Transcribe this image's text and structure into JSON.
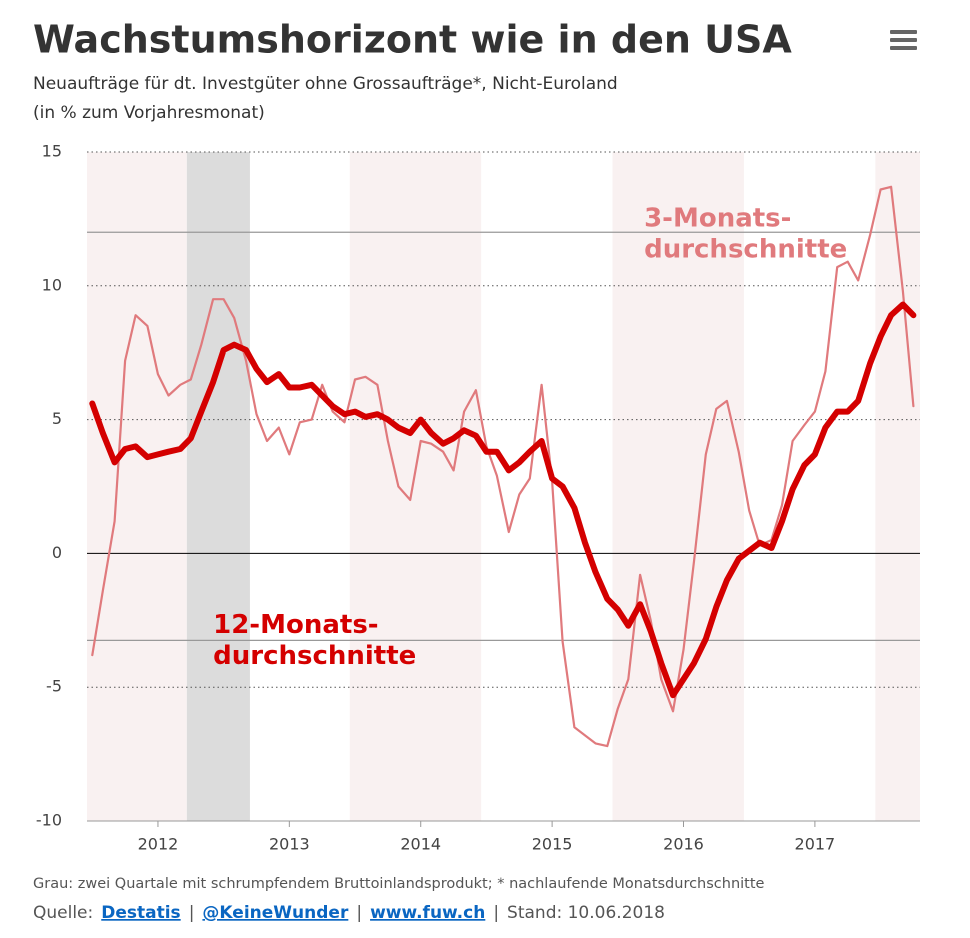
{
  "header": {
    "title": "Wachstumshorizont wie in den USA",
    "subtitle": [
      "Neuaufträge für dt. Investgüter ohne Grossaufträge*, Nicht-Euroland",
      "(in % zum Vorjahresmonat)"
    ]
  },
  "chart_data": {
    "type": "line",
    "x": [
      2011.5,
      2011.58,
      2011.67,
      2011.75,
      2011.83,
      2011.92,
      2012,
      2012.08,
      2012.17,
      2012.25,
      2012.33,
      2012.42,
      2012.5,
      2012.58,
      2012.67,
      2012.75,
      2012.83,
      2012.92,
      2013,
      2013.08,
      2013.17,
      2013.25,
      2013.33,
      2013.42,
      2013.5,
      2013.58,
      2013.67,
      2013.75,
      2013.83,
      2013.92,
      2014,
      2014.08,
      2014.17,
      2014.25,
      2014.33,
      2014.42,
      2014.5,
      2014.58,
      2014.67,
      2014.75,
      2014.83,
      2014.92,
      2015,
      2015.08,
      2015.17,
      2015.25,
      2015.33,
      2015.42,
      2015.5,
      2015.58,
      2015.67,
      2015.75,
      2015.83,
      2015.92,
      2016,
      2016.08,
      2016.17,
      2016.25,
      2016.33,
      2016.42,
      2016.5,
      2016.58,
      2016.67,
      2016.75,
      2016.83,
      2016.92,
      2017,
      2017.08,
      2017.17,
      2017.25,
      2017.33,
      2017.42,
      2017.5,
      2017.58,
      2017.67,
      2017.75
    ],
    "series": [
      {
        "color": "#e07a7d",
        "width": 2.2,
        "values": [
          -3.8,
          -1.4,
          1.2,
          7.2,
          8.9,
          8.5,
          6.7,
          5.9,
          6.3,
          6.5,
          7.8,
          9.5,
          9.5,
          8.8,
          7.2,
          5.2,
          4.2,
          4.7,
          3.7,
          4.9,
          5.0,
          6.3,
          5.3,
          4.9,
          6.5,
          6.6,
          6.3,
          4.2,
          2.5,
          2.0,
          4.2,
          4.1,
          3.8,
          3.1,
          5.3,
          6.1,
          4.0,
          2.9,
          0.8,
          2.2,
          2.8,
          6.3,
          2.7,
          -3.3,
          -6.5,
          -6.8,
          -7.1,
          -7.2,
          -5.8,
          -4.7,
          -0.8,
          -2.5,
          -4.7,
          -5.9,
          -3.6,
          -0.3,
          3.7,
          5.4,
          5.7,
          3.8,
          1.6,
          0.3,
          0.5,
          1.8,
          4.2,
          4.8,
          5.3,
          6.8,
          10.7,
          10.9,
          10.2,
          11.9,
          13.6,
          13.7,
          9.8,
          5.5
        ]
      },
      {
        "color": "#d40000",
        "width": 6,
        "values": [
          5.6,
          4.5,
          3.4,
          3.9,
          4.0,
          3.6,
          3.7,
          3.8,
          3.9,
          4.3,
          5.3,
          6.4,
          7.6,
          7.8,
          7.6,
          6.9,
          6.4,
          6.7,
          6.2,
          6.2,
          6.3,
          5.9,
          5.5,
          5.2,
          5.3,
          5.1,
          5.2,
          5.0,
          4.7,
          4.5,
          5.0,
          4.5,
          4.1,
          4.3,
          4.6,
          4.4,
          3.8,
          3.8,
          3.1,
          3.4,
          3.8,
          4.2,
          2.8,
          2.5,
          1.7,
          0.4,
          -0.7,
          -1.7,
          -2.1,
          -2.7,
          -1.9,
          -2.9,
          -4.1,
          -5.3,
          -4.7,
          -4.1,
          -3.2,
          -2.0,
          -1.0,
          -0.2,
          0.1,
          0.4,
          0.2,
          1.2,
          2.4,
          3.3,
          3.7,
          4.7,
          5.3,
          5.3,
          5.7,
          7.1,
          8.1,
          8.9,
          9.3,
          8.9
        ]
      }
    ],
    "xlim": [
      2011.46,
      2017.8
    ],
    "xticks": [
      2012,
      2013,
      2014,
      2015,
      2016,
      2017
    ],
    "ylim": [
      -10,
      15
    ],
    "yticks": [
      -10,
      -5,
      0,
      5,
      10,
      15
    ],
    "grid": true,
    "reference_lines": [
      12,
      -3.25
    ],
    "stripes": [
      [
        2011.46,
        2012.22
      ],
      [
        2013.46,
        2014.46
      ],
      [
        2015.46,
        2016.46
      ],
      [
        2017.46,
        2017.8
      ]
    ],
    "stripe_color": "#f9f1f1",
    "shaded": [
      [
        2012.22,
        2012.7
      ]
    ],
    "shaded_color": "#dcdcdc",
    "annotations": [
      {
        "lines": [
          "3-Monats-",
          "durchschnitte"
        ],
        "x": 2015.7,
        "y": 12.5,
        "color": "#e07a7d"
      },
      {
        "lines": [
          "12-Monats-",
          "durchschnitte"
        ],
        "x": 2012.42,
        "y": -2.7,
        "color": "#d40000"
      }
    ]
  },
  "footer": {
    "note": "Grau: zwei Quartale mit schrumpfendem Bruttoinlandsprodukt; * nachlaufende Monatsdurchschnitte",
    "source_label": "Quelle:",
    "links": [
      "Destatis",
      "@KeineWunder",
      "www.fuw.ch"
    ],
    "separator": "|",
    "stand": "Stand: 10.06.2018"
  }
}
